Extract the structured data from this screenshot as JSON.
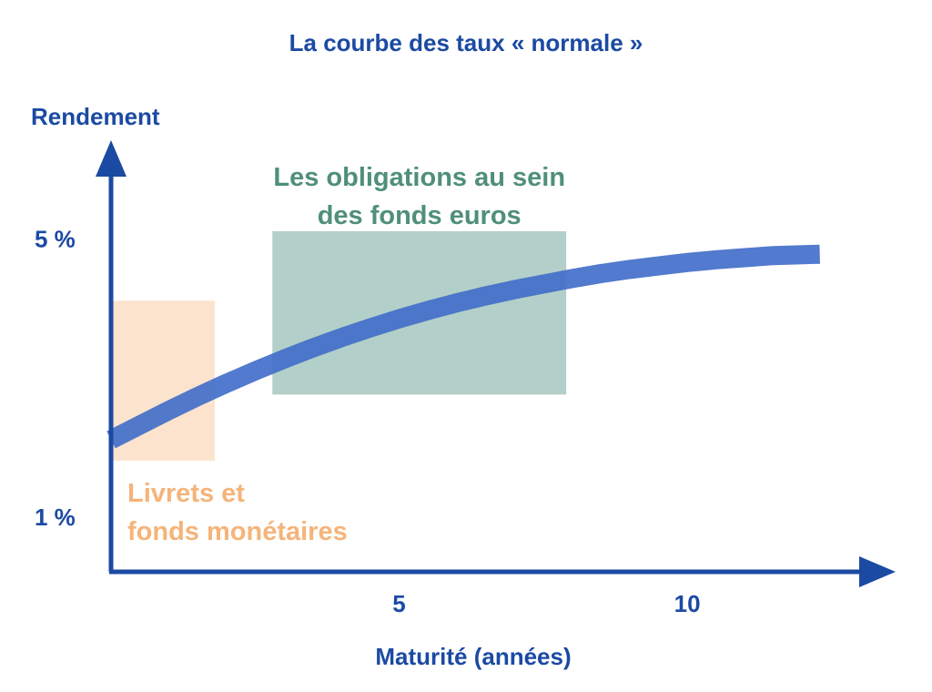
{
  "chart_data": {
    "type": "line",
    "title": "La courbe des taux « normale »",
    "xlabel": "Maturité (années)",
    "ylabel": "Rendement",
    "x_ticks": [
      {
        "value": 5,
        "label": "5"
      },
      {
        "value": 10,
        "label": "10"
      }
    ],
    "y_ticks": [
      {
        "value": 1,
        "label": "1 %"
      },
      {
        "value": 5,
        "label": "5 %"
      }
    ],
    "xlim": [
      0,
      13
    ],
    "ylim": [
      0.2,
      6.2
    ],
    "grid": false,
    "series": [
      {
        "name": "",
        "x": [
          0,
          0.5,
          1,
          1.5,
          2,
          2.5,
          3,
          3.5,
          4,
          4.5,
          5,
          5.5,
          6,
          6.5,
          7,
          7.5,
          8,
          8.5,
          9,
          9.5,
          10,
          10.5,
          11,
          11.5,
          12.3
        ],
        "y": [
          2.1,
          2.31,
          2.52,
          2.72,
          2.91,
          3.09,
          3.26,
          3.42,
          3.57,
          3.71,
          3.84,
          3.96,
          4.07,
          4.17,
          4.26,
          4.34,
          4.42,
          4.49,
          4.55,
          4.6,
          4.65,
          4.69,
          4.72,
          4.75,
          4.77
        ]
      }
    ],
    "regions": [
      {
        "label": "Livrets et fonds monétaires",
        "label_lines": [
          "Livrets et",
          "fonds monétaires"
        ],
        "x_range": [
          0,
          1.8
        ],
        "y_range": [
          1.8,
          4.1
        ],
        "color": "#fbe3cd",
        "text_color": "#f5b47a"
      },
      {
        "label": "Les obligations au sein des fonds euros",
        "label_lines": [
          "Les obligations au sein",
          "des fonds euros"
        ],
        "x_range": [
          2.8,
          7.9
        ],
        "y_range": [
          2.75,
          5.1
        ],
        "color": "#b3cfc9",
        "text_color": "#4f8f7b"
      }
    ],
    "colors": {
      "axis": "#1b4aa3",
      "curve": "#3f6cc9",
      "text": "#1b4aa3"
    }
  }
}
